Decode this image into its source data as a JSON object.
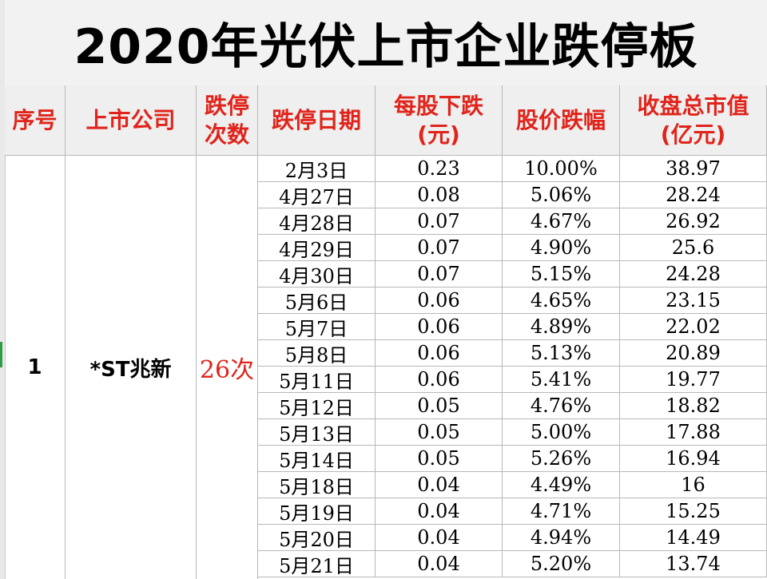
{
  "title": "2020年光伏上市企业跌停板",
  "headers": {
    "seq": "序号",
    "company": "上市公司",
    "count_l1": "跌停",
    "count_l2": "次数",
    "date": "跌停日期",
    "drop_l1": "每股下跌",
    "drop_l2": "(元)",
    "pct": "股价跌幅",
    "cap_l1": "收盘总市值",
    "cap_l2": "(亿元)"
  },
  "group": {
    "seq": "1",
    "company": "*ST兆新",
    "count": "26次"
  },
  "rows": [
    {
      "date": "2月3日",
      "drop": "0.23",
      "pct": "10.00%",
      "cap": "38.97"
    },
    {
      "date": "4月27日",
      "drop": "0.08",
      "pct": "5.06%",
      "cap": "28.24"
    },
    {
      "date": "4月28日",
      "drop": "0.07",
      "pct": "4.67%",
      "cap": "26.92"
    },
    {
      "date": "4月29日",
      "drop": "0.07",
      "pct": "4.90%",
      "cap": "25.6"
    },
    {
      "date": "4月30日",
      "drop": "0.07",
      "pct": "5.15%",
      "cap": "24.28"
    },
    {
      "date": "5月6日",
      "drop": "0.06",
      "pct": "4.65%",
      "cap": "23.15"
    },
    {
      "date": "5月7日",
      "drop": "0.06",
      "pct": "4.89%",
      "cap": "22.02"
    },
    {
      "date": "5月8日",
      "drop": "0.06",
      "pct": "5.13%",
      "cap": "20.89"
    },
    {
      "date": "5月11日",
      "drop": "0.06",
      "pct": "5.41%",
      "cap": "19.77"
    },
    {
      "date": "5月12日",
      "drop": "0.05",
      "pct": "4.76%",
      "cap": "18.82"
    },
    {
      "date": "5月13日",
      "drop": "0.05",
      "pct": "5.00%",
      "cap": "17.88"
    },
    {
      "date": "5月14日",
      "drop": "0.05",
      "pct": "5.26%",
      "cap": "16.94"
    },
    {
      "date": "5月18日",
      "drop": "0.04",
      "pct": "4.49%",
      "cap": "16"
    },
    {
      "date": "5月19日",
      "drop": "0.04",
      "pct": "4.71%",
      "cap": "15.25"
    },
    {
      "date": "5月20日",
      "drop": "0.04",
      "pct": "4.94%",
      "cap": "14.49"
    },
    {
      "date": "5月21日",
      "drop": "0.04",
      "pct": "5.20%",
      "cap": "13.74"
    }
  ],
  "colors": {
    "header_text": "#e0241b",
    "count_text": "#e0241b",
    "header_bg": "#efefef",
    "title_bg": "#f2f2f2"
  }
}
